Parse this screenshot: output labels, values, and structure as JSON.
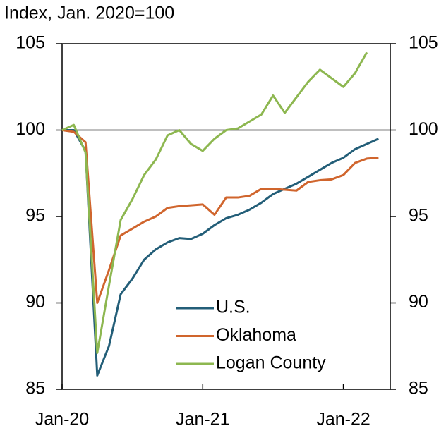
{
  "chart_data": {
    "type": "line",
    "title": "Index, Jan. 2020=100",
    "categories": [
      "Jan-20",
      null,
      null,
      null,
      null,
      null,
      null,
      null,
      null,
      null,
      null,
      null,
      "Jan-21",
      null,
      null,
      null,
      null,
      null,
      null,
      null,
      null,
      null,
      null,
      null,
      "Jan-22",
      null,
      null,
      null
    ],
    "series": [
      {
        "name": "U.S.",
        "color": "#235e78",
        "values": [
          100,
          100,
          98.8,
          85.8,
          87.5,
          90.5,
          91.4,
          92.5,
          93.1,
          93.5,
          93.75,
          93.7,
          94.0,
          94.5,
          94.9,
          95.1,
          95.4,
          95.8,
          96.3,
          96.6,
          96.9,
          97.3,
          97.7,
          98.1,
          98.4,
          98.9,
          99.2,
          99.5
        ]
      },
      {
        "name": "Oklahoma",
        "color": "#d0652d",
        "values": [
          100,
          99.9,
          99.3,
          90.0,
          91.9,
          93.9,
          94.3,
          94.7,
          95.0,
          95.5,
          95.6,
          95.65,
          95.7,
          95.1,
          96.1,
          96.1,
          96.2,
          96.6,
          96.6,
          96.55,
          96.5,
          97.0,
          97.1,
          97.15,
          97.4,
          98.1,
          98.35,
          98.4
        ]
      },
      {
        "name": "Logan County",
        "color": "#8db750",
        "values": [
          100,
          100.3,
          98.7,
          87.1,
          91.0,
          94.8,
          96.0,
          97.4,
          98.3,
          99.7,
          100.0,
          99.2,
          98.8,
          99.5,
          100.0,
          100.1,
          100.5,
          100.9,
          102.0,
          101.0,
          101.9,
          102.8,
          103.5,
          103.0,
          102.5,
          103.3,
          104.5,
          null
        ]
      }
    ],
    "ylim": [
      85,
      105
    ],
    "yticks": [
      85,
      90,
      95,
      100,
      105
    ],
    "y2lim": [
      85,
      105
    ],
    "y2ticks": [
      85,
      90,
      95,
      100,
      105
    ],
    "reference_line": 100
  }
}
